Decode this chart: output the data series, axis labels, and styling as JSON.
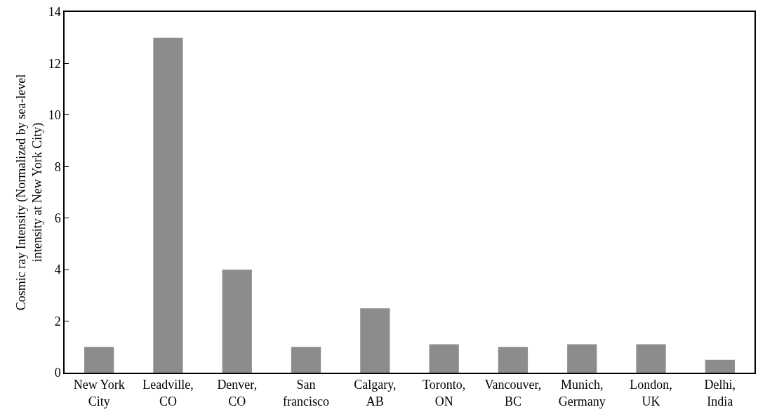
{
  "chart_data": {
    "type": "bar",
    "ylabel": "Cosmic ray Intensity (Normalized by sea-level intensity at New York City)",
    "categories": [
      "New York City",
      "Leadville, CO",
      "Denver, CO",
      "San francisco",
      "Calgary, AB",
      "Toronto, ON",
      "Vancouver, BC",
      "Munich, Germany",
      "London, UK",
      "Delhi, India"
    ],
    "values": [
      1.0,
      13.0,
      4.0,
      1.0,
      2.5,
      1.1,
      1.0,
      1.1,
      1.1,
      0.5
    ],
    "color": "#8c8c8c",
    "ylim": [
      0,
      14
    ],
    "yticks": [
      0,
      2,
      4,
      6,
      8,
      10,
      12,
      14
    ],
    "grid": false
  }
}
